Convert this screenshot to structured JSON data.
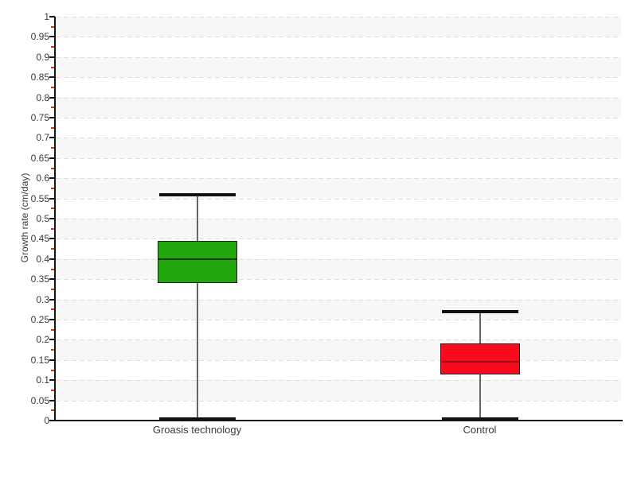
{
  "chart_data": {
    "type": "boxplot",
    "title": "",
    "xlabel": "",
    "ylabel": "Growth rate (cm/day)",
    "ylim": [
      0,
      1
    ],
    "ytick_step": 0.05,
    "minor_tick_step": 0.025,
    "ytick_labels": [
      "1",
      "0.95",
      "0.9",
      "0.85",
      "0.8",
      "0.75",
      "0.7",
      "0.65",
      "0.6",
      "0.55",
      "0.5",
      "0.45",
      "0.4",
      "0.35",
      "0.3",
      "0.25",
      "0.2",
      "0.15",
      "0.1",
      "0.05",
      "0"
    ],
    "categories": [
      "Groasis technology",
      "Control"
    ],
    "series": [
      {
        "name": "Groasis technology",
        "min": 0,
        "q1": 0.34,
        "median": 0.4,
        "q3": 0.445,
        "max": 0.56,
        "fill": "#21a70d",
        "median_color": "#0b3a02"
      },
      {
        "name": "Control",
        "min": 0,
        "q1": 0.115,
        "median": 0.145,
        "q3": 0.19,
        "max": 0.27,
        "fill": "#f90b1e",
        "median_color": "#9b0a14"
      }
    ],
    "grid": "dashed horizontal at every 0.05",
    "legend": "none",
    "plot_background": "alternating horizontal bands",
    "colors": {
      "band_gray": "#f7f7f7",
      "band_white": "#ffffff",
      "grid": "#dedede",
      "axis": "#151515",
      "major_tick": "#151515",
      "minor_tick": "#d9330f",
      "text": "#3b3b3b",
      "whisker": "#666666",
      "cap": "#111111",
      "box_green": "#21a70d",
      "box_red": "#f90b1e"
    }
  }
}
